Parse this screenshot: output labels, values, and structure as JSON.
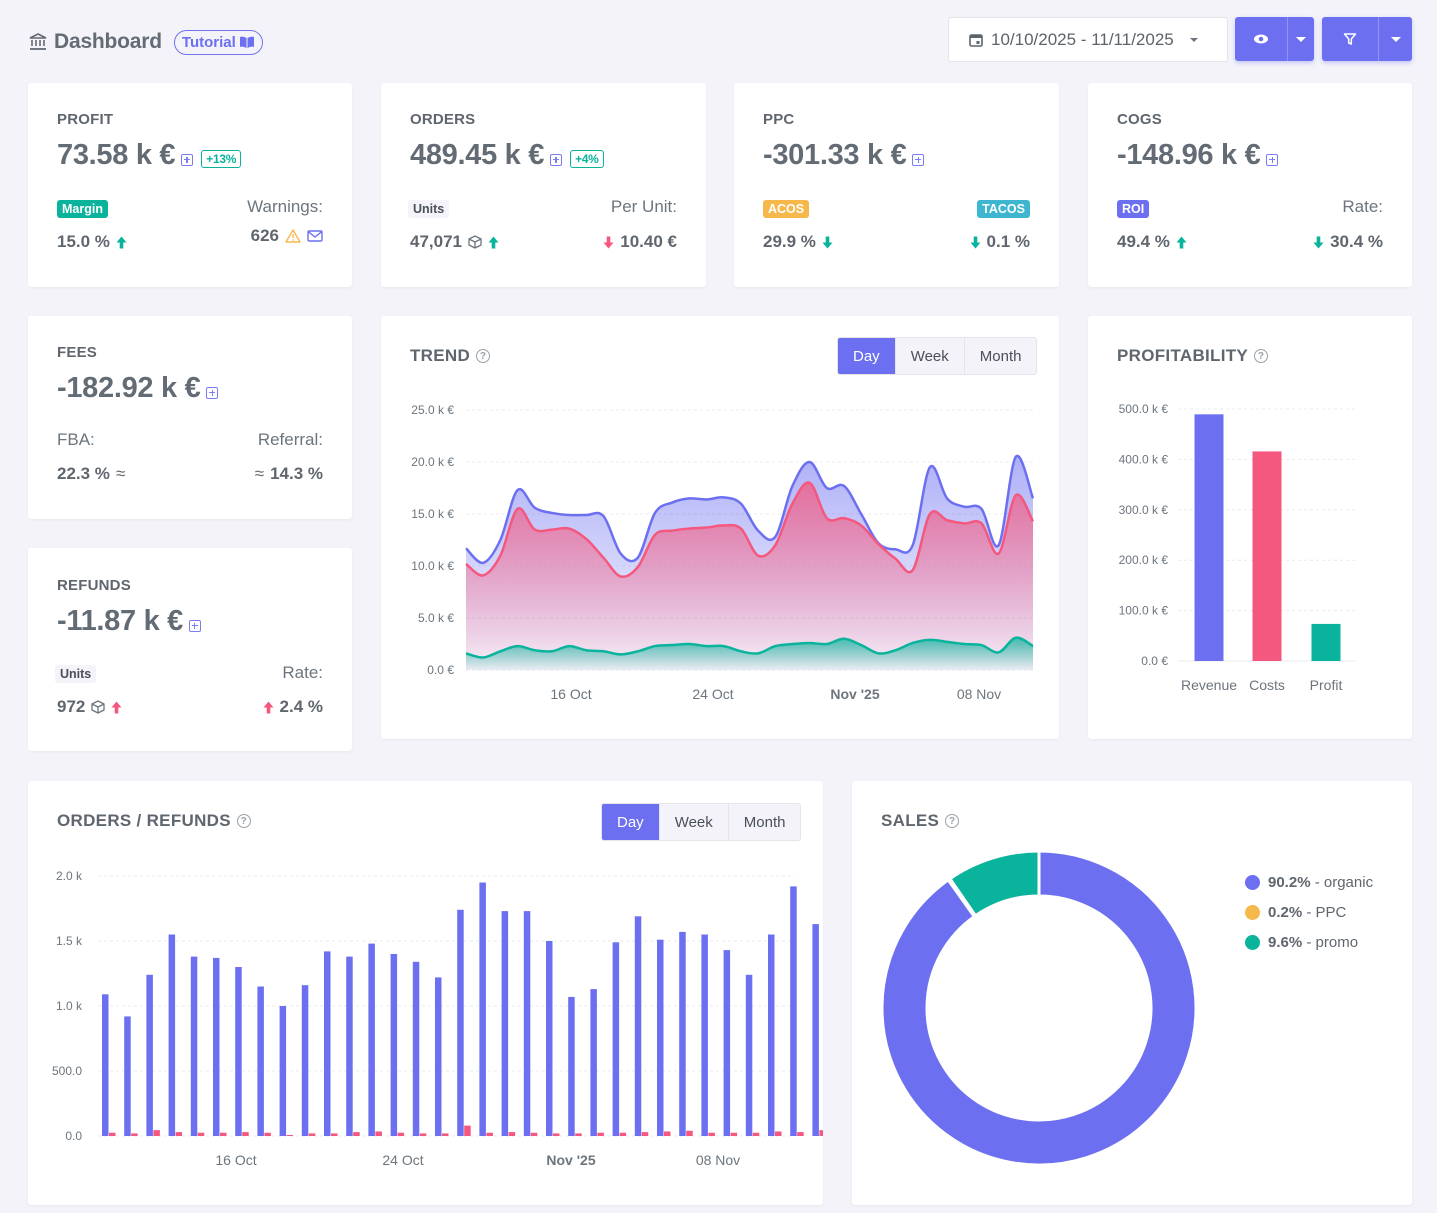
{
  "header": {
    "title": "Dashboard",
    "tutorial_label": "Tutorial",
    "date_range": "10/10/2025 - 11/11/2025"
  },
  "colors": {
    "primary": "#6c70f0",
    "danger": "#f5587f",
    "success": "#0ab39c",
    "warning": "#f7b84b",
    "info": "#299cdb"
  },
  "cards": {
    "profit": {
      "label": "PROFIT",
      "value": "73.58 k €",
      "delta": "+13%",
      "badge": "Margin",
      "badge_value": "15.0 %",
      "right_label": "Warnings:",
      "right_value": "626"
    },
    "orders": {
      "label": "ORDERS",
      "value": "489.45 k €",
      "delta": "+4%",
      "badge": "Units",
      "badge_value": "47,071",
      "right_label": "Per Unit:",
      "right_value": "10.40 €"
    },
    "ppc": {
      "label": "PPC",
      "value": "-301.33 k €",
      "badge": "ACOS",
      "badge_value": "29.9 %",
      "right_badge": "TACOS",
      "right_value": "0.1 %"
    },
    "cogs": {
      "label": "COGS",
      "value": "-148.96 k €",
      "badge": "ROI",
      "badge_value": "49.4 %",
      "right_label": "Rate:",
      "right_value": "30.4 %"
    },
    "fees": {
      "label": "FEES",
      "value": "-182.92 k €",
      "left_label": "FBA:",
      "left_value": "22.3 %",
      "right_label": "Referral:",
      "right_value": "14.3 %"
    },
    "refunds": {
      "label": "REFUNDS",
      "value": "-11.87 k €",
      "badge": "Units",
      "badge_value": "972",
      "right_label": "Rate:",
      "right_value": "2.4 %"
    }
  },
  "trend": {
    "title": "TREND",
    "tabs": [
      "Day",
      "Week",
      "Month"
    ],
    "active_tab": "Day"
  },
  "profitability": {
    "title": "PROFITABILITY"
  },
  "orders_refunds": {
    "title": "ORDERS / REFUNDS",
    "tabs": [
      "Day",
      "Week",
      "Month"
    ],
    "active_tab": "Day"
  },
  "sales": {
    "title": "SALES",
    "legend": [
      {
        "pct": "90.2%",
        "label": " - organic",
        "color": "#6c70f0"
      },
      {
        "pct": "0.2%",
        "label": " - PPC",
        "color": "#f7b84b"
      },
      {
        "pct": "9.6%",
        "label": " - promo",
        "color": "#0ab39c"
      }
    ]
  },
  "chart_data": [
    {
      "type": "area",
      "name": "trend",
      "x_ticks": [
        "16 Oct",
        "24 Oct",
        "Nov '25",
        "08 Nov"
      ],
      "y_ticks": [
        "0.0 €",
        "5.0 k €",
        "10.0 k €",
        "15.0 k €",
        "20.0 k €",
        "25.0 k €"
      ],
      "ylim": [
        0,
        25000
      ],
      "series": [
        {
          "color": "#6c70f0",
          "values": [
            11700,
            10300,
            12500,
            17300,
            15600,
            15100,
            14900,
            14900,
            14800,
            11200,
            10800,
            15100,
            16100,
            16500,
            16400,
            16600,
            16000,
            13400,
            12800,
            17700,
            20000,
            17500,
            17700,
            15000,
            12200,
            11600,
            12000,
            19500,
            16500,
            15700,
            15500,
            12000,
            20500,
            16500
          ]
        },
        {
          "color": "#f5587f",
          "values": [
            10200,
            9100,
            11000,
            15500,
            13500,
            13500,
            13600,
            12600,
            10800,
            9000,
            9900,
            13000,
            13400,
            13600,
            13700,
            13900,
            13600,
            11000,
            12000,
            16000,
            18000,
            14600,
            14600,
            13900,
            12100,
            10700,
            9600,
            15000,
            14400,
            14100,
            14100,
            11200,
            16800,
            14300
          ]
        },
        {
          "color": "#0ab39c",
          "values": [
            1600,
            1200,
            1800,
            2300,
            1900,
            1800,
            2300,
            1900,
            1800,
            1500,
            1800,
            2300,
            2400,
            2500,
            2300,
            2300,
            1800,
            1600,
            2300,
            2500,
            2600,
            2500,
            3000,
            2400,
            1600,
            1900,
            2600,
            2900,
            2700,
            2500,
            2400,
            1700,
            3100,
            2300
          ]
        }
      ]
    },
    {
      "type": "bar",
      "name": "profitability",
      "categories": [
        "Revenue",
        "Costs",
        "Profit"
      ],
      "values": [
        489450,
        415870,
        73580
      ],
      "colors": [
        "#6c70f0",
        "#f5587f",
        "#0ab39c"
      ],
      "y_ticks": [
        "0.0 €",
        "100.0 k €",
        "200.0 k €",
        "300.0 k €",
        "400.0 k €",
        "500.0 k €"
      ],
      "ylim": [
        0,
        500000
      ]
    },
    {
      "type": "bar",
      "name": "orders_refunds",
      "x_ticks": [
        "16 Oct",
        "24 Oct",
        "Nov '25",
        "08 Nov"
      ],
      "y_ticks": [
        "0.0",
        "500.0",
        "1.0 k",
        "1.5 k",
        "2.0 k"
      ],
      "ylim": [
        0,
        2000
      ],
      "series": [
        {
          "color": "#6c70f0",
          "values": [
            1090,
            920,
            1240,
            1550,
            1380,
            1370,
            1300,
            1150,
            1000,
            1160,
            1420,
            1380,
            1480,
            1400,
            1340,
            1220,
            1740,
            1950,
            1730,
            1730,
            1500,
            1070,
            1130,
            1490,
            1690,
            1510,
            1570,
            1550,
            1430,
            1240,
            1550,
            1920,
            1630
          ]
        },
        {
          "color": "#f5587f",
          "values": [
            25,
            20,
            45,
            30,
            25,
            25,
            30,
            25,
            5,
            20,
            20,
            30,
            35,
            25,
            20,
            20,
            80,
            25,
            30,
            25,
            20,
            20,
            25,
            25,
            30,
            35,
            40,
            25,
            25,
            25,
            35,
            30,
            45
          ]
        }
      ]
    },
    {
      "type": "pie",
      "name": "sales",
      "labels": [
        "organic",
        "PPC",
        "promo"
      ],
      "values": [
        90.2,
        0.2,
        9.6
      ],
      "colors": [
        "#6c70f0",
        "#f7b84b",
        "#0ab39c"
      ]
    }
  ]
}
